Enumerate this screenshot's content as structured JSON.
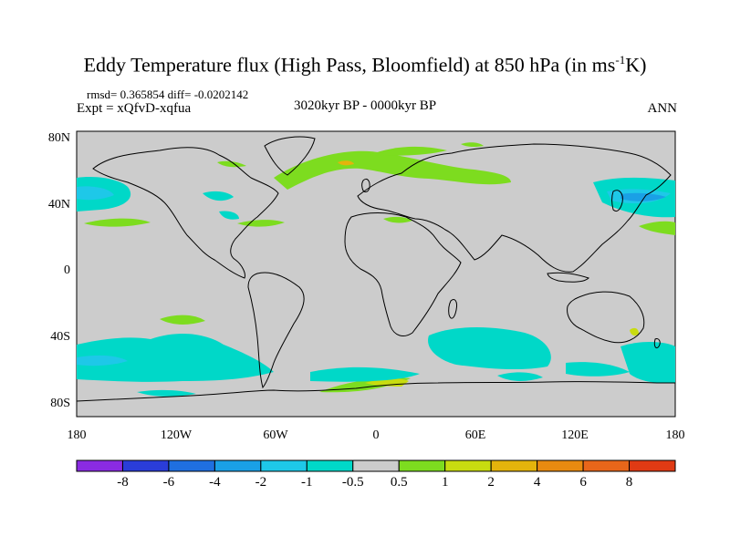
{
  "title": "Eddy Temperature flux (High Pass, Bloomfield) at 850 hPa (in ms",
  "title_sup": "-1",
  "title_end": "K)",
  "stats": "rmsd= 0.365854 diff= -0.0202142",
  "experiment": "Expt = xQfvD-xqfua",
  "period": "3020kyr BP - 0000kyr BP",
  "season": "ANN",
  "lat_labels": [
    "80N",
    "40N",
    "0",
    "40S",
    "80S"
  ],
  "lon_labels": [
    "180",
    "120W",
    "60W",
    "0",
    "60E",
    "120E",
    "180"
  ],
  "colorbar": {
    "labels": [
      "-8",
      "-6",
      "-4",
      "-2",
      "-1",
      "-0.5",
      "0.5",
      "1",
      "2",
      "4",
      "6",
      "8"
    ],
    "colors": [
      "#8a2be2",
      "#2a3dd9",
      "#1f6fe0",
      "#1aa0e6",
      "#1ec8e8",
      "#00d8c8",
      "#cccccc",
      "#7ddc1f",
      "#c8dc10",
      "#e4b40c",
      "#e88a10",
      "#e8661a",
      "#e03a14"
    ]
  },
  "colors": {
    "land_ocean_background": "#cccccc",
    "positive_small": "#7ddc1f",
    "negative_small": "#00d8c8",
    "negative_medium": "#1ec8e8",
    "negative_strong": "#1aa0e6"
  }
}
